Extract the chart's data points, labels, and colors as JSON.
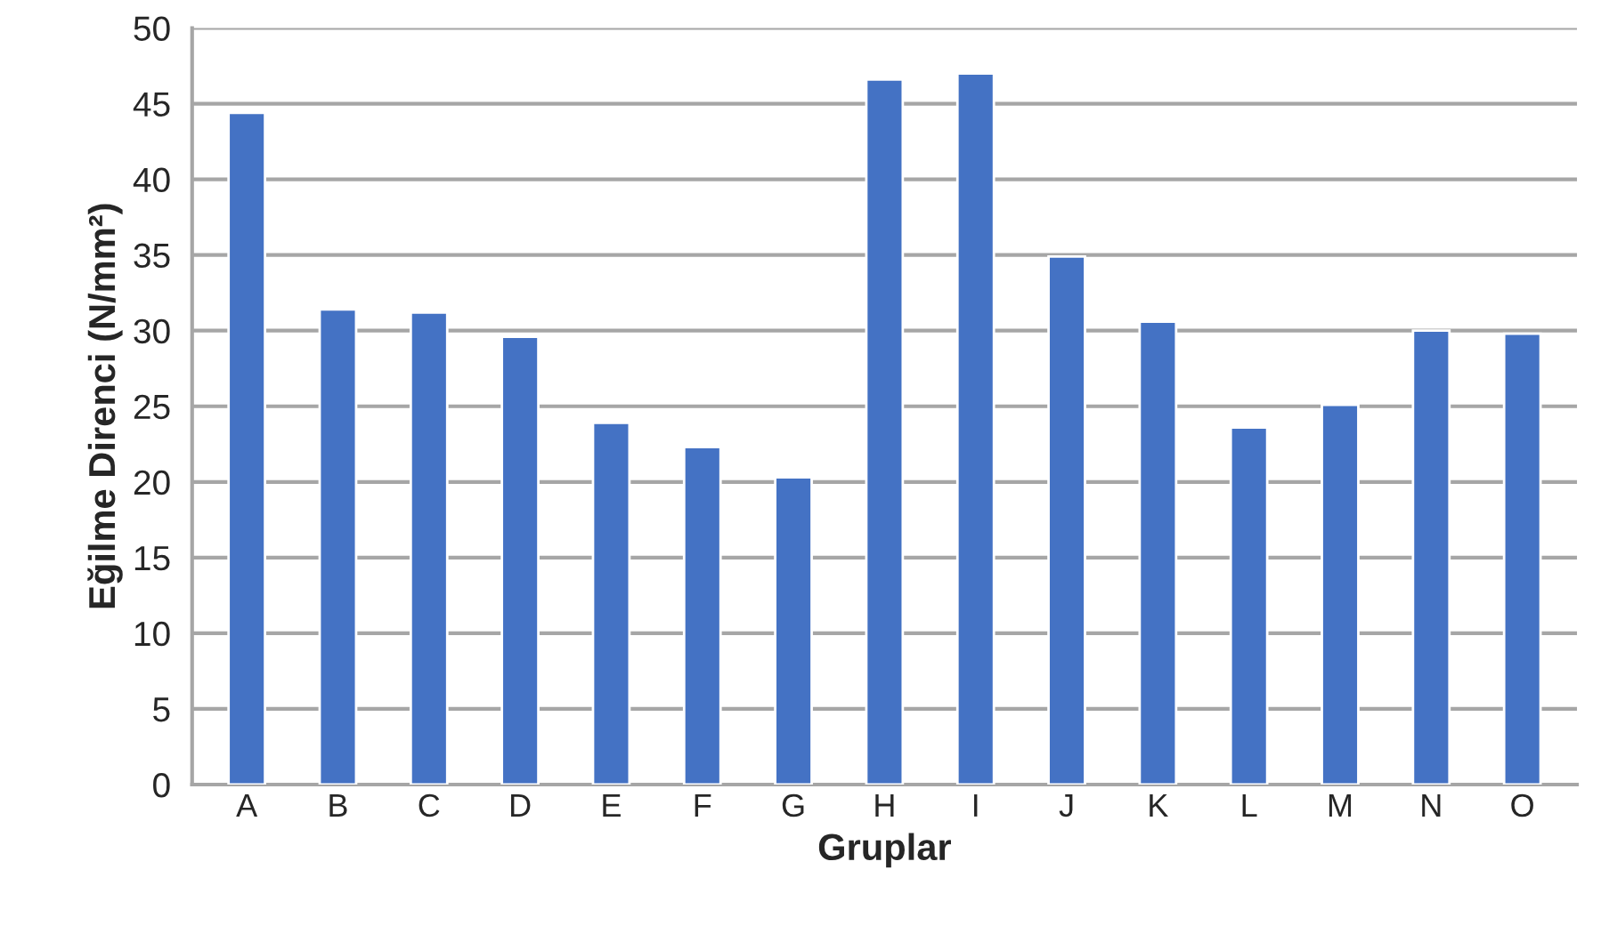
{
  "chart_data": {
    "type": "bar",
    "xlabel": "Gruplar",
    "ylabel": "Eğilme Direnci (N/mm²)",
    "categories": [
      "A",
      "B",
      "C",
      "D",
      "E",
      "F",
      "G",
      "H",
      "I",
      "J",
      "K",
      "L",
      "M",
      "N",
      "O"
    ],
    "values": [
      44.4,
      31.4,
      31.2,
      29.6,
      23.9,
      22.3,
      20.3,
      46.6,
      47.0,
      34.9,
      30.6,
      23.6,
      25.1,
      30.0,
      29.8
    ],
    "color": "#4472c4",
    "ylim": [
      0,
      50
    ],
    "yticks": [
      0,
      5,
      10,
      15,
      20,
      25,
      30,
      35,
      40,
      45,
      50
    ],
    "grid": "y"
  }
}
